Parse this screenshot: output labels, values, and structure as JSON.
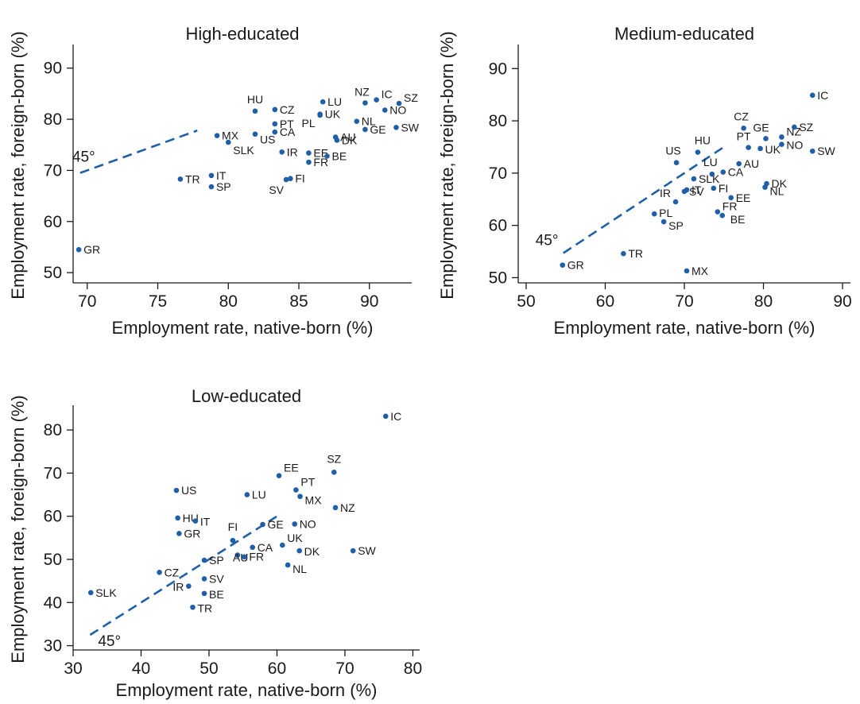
{
  "colors": {
    "point": "#1f5fa8",
    "axis": "#1a1a1a",
    "reference_line": "#1f5fa8"
  },
  "chart_data": [
    {
      "type": "scatter",
      "title": "High-educated",
      "xlabel": "Employment rate, native-born (%)",
      "ylabel": "Employment rate, foreign-born (%)",
      "xlim": [
        69,
        93
      ],
      "ylim": [
        48,
        94
      ],
      "xticks": [
        70,
        75,
        80,
        85,
        90
      ],
      "yticks": [
        50,
        60,
        70,
        80,
        90
      ],
      "reference_line": {
        "label": "45°",
        "x": [
          69.5,
          77.8
        ]
      },
      "points": [
        {
          "label": "GR",
          "x": 69.4,
          "y": 54.5
        },
        {
          "label": "TR",
          "x": 76.6,
          "y": 68.3
        },
        {
          "label": "IT",
          "x": 78.8,
          "y": 69.0
        },
        {
          "label": "SP",
          "x": 78.8,
          "y": 66.8
        },
        {
          "label": "MX",
          "x": 79.2,
          "y": 76.8
        },
        {
          "label": "SLK",
          "x": 80.0,
          "y": 75.5
        },
        {
          "label": "HU",
          "x": 81.9,
          "y": 81.6
        },
        {
          "label": "US",
          "x": 81.9,
          "y": 77.1
        },
        {
          "label": "PT",
          "x": 83.3,
          "y": 79.1
        },
        {
          "label": "CA",
          "x": 83.3,
          "y": 77.5
        },
        {
          "label": "CZ",
          "x": 83.3,
          "y": 81.9
        },
        {
          "label": "IR",
          "x": 83.8,
          "y": 73.6
        },
        {
          "label": "FI",
          "x": 84.4,
          "y": 68.4
        },
        {
          "label": "SV",
          "x": 84.1,
          "y": 68.2
        },
        {
          "label": "EE",
          "x": 85.7,
          "y": 73.4
        },
        {
          "label": "FR",
          "x": 85.7,
          "y": 71.6
        },
        {
          "label": "LU",
          "x": 86.7,
          "y": 83.4
        },
        {
          "label": "UK",
          "x": 86.5,
          "y": 81.0
        },
        {
          "label": "PL",
          "x": 86.5,
          "y": 80.8
        },
        {
          "label": "BE",
          "x": 87.0,
          "y": 72.8
        },
        {
          "label": "AU",
          "x": 87.6,
          "y": 76.5
        },
        {
          "label": "DK",
          "x": 87.7,
          "y": 75.9
        },
        {
          "label": "NL",
          "x": 89.1,
          "y": 79.6
        },
        {
          "label": "GE",
          "x": 89.7,
          "y": 78.0
        },
        {
          "label": "NZ",
          "x": 89.7,
          "y": 83.2
        },
        {
          "label": "IC",
          "x": 90.5,
          "y": 83.8
        },
        {
          "label": "NO",
          "x": 91.1,
          "y": 81.8
        },
        {
          "label": "SZ",
          "x": 92.1,
          "y": 83.1
        },
        {
          "label": "SW",
          "x": 91.9,
          "y": 78.4
        }
      ]
    },
    {
      "type": "scatter",
      "title": "Medium-educated",
      "xlabel": "Employment rate, native-born (%)",
      "ylabel": "Employment rate, foreign-born (%)",
      "xlim": [
        49,
        91
      ],
      "ylim": [
        49,
        94
      ],
      "xticks": [
        50,
        60,
        70,
        80,
        90
      ],
      "yticks": [
        50,
        60,
        70,
        80,
        90
      ],
      "reference_line": {
        "label": "45°",
        "x": [
          54.7,
          75.0
        ]
      },
      "points": [
        {
          "label": "GR",
          "x": 54.6,
          "y": 52.4
        },
        {
          "label": "TR",
          "x": 62.3,
          "y": 54.6
        },
        {
          "label": "MX",
          "x": 70.3,
          "y": 51.3
        },
        {
          "label": "PL",
          "x": 66.2,
          "y": 62.2
        },
        {
          "label": "SP",
          "x": 67.4,
          "y": 60.7
        },
        {
          "label": "IR",
          "x": 68.9,
          "y": 64.5
        },
        {
          "label": "SV",
          "x": 70.0,
          "y": 66.5
        },
        {
          "label": "IT",
          "x": 70.3,
          "y": 66.8
        },
        {
          "label": "US",
          "x": 69.0,
          "y": 72.0
        },
        {
          "label": "SLK",
          "x": 71.2,
          "y": 68.9
        },
        {
          "label": "HU",
          "x": 71.7,
          "y": 74.0
        },
        {
          "label": "LU",
          "x": 73.5,
          "y": 69.8
        },
        {
          "label": "FI",
          "x": 73.7,
          "y": 67.1
        },
        {
          "label": "CA",
          "x": 74.9,
          "y": 70.2
        },
        {
          "label": "EE",
          "x": 75.9,
          "y": 65.3
        },
        {
          "label": "FR",
          "x": 74.2,
          "y": 62.6
        },
        {
          "label": "BE",
          "x": 74.8,
          "y": 61.9
        },
        {
          "label": "AU",
          "x": 76.9,
          "y": 71.8
        },
        {
          "label": "CZ",
          "x": 77.5,
          "y": 78.6
        },
        {
          "label": "PT",
          "x": 78.1,
          "y": 74.9
        },
        {
          "label": "UK",
          "x": 79.6,
          "y": 74.7
        },
        {
          "label": "GE",
          "x": 80.3,
          "y": 76.6
        },
        {
          "label": "DK",
          "x": 80.4,
          "y": 68.0
        },
        {
          "label": "NL",
          "x": 80.2,
          "y": 67.3
        },
        {
          "label": "NZ",
          "x": 82.3,
          "y": 76.9
        },
        {
          "label": "NO",
          "x": 82.3,
          "y": 75.5
        },
        {
          "label": "SZ",
          "x": 83.9,
          "y": 78.8
        },
        {
          "label": "IC",
          "x": 86.2,
          "y": 84.9
        },
        {
          "label": "SW",
          "x": 86.2,
          "y": 74.2
        }
      ]
    },
    {
      "type": "scatter",
      "title": "Low-educated",
      "xlabel": "Employment rate, native-born (%)",
      "ylabel": "Employment rate, foreign-born (%)",
      "xlim": [
        30,
        81
      ],
      "ylim": [
        29,
        85
      ],
      "xticks": [
        30,
        40,
        50,
        60,
        70,
        80
      ],
      "yticks": [
        30,
        40,
        50,
        60,
        70,
        80
      ],
      "reference_line": {
        "label": "45°",
        "x": [
          32.5,
          60.0
        ]
      },
      "points": [
        {
          "label": "SLK",
          "x": 32.6,
          "y": 42.3
        },
        {
          "label": "CZ",
          "x": 42.7,
          "y": 47.0
        },
        {
          "label": "US",
          "x": 45.2,
          "y": 66.0
        },
        {
          "label": "HU",
          "x": 45.4,
          "y": 59.6
        },
        {
          "label": "GR",
          "x": 45.6,
          "y": 56.0
        },
        {
          "label": "IT",
          "x": 48.0,
          "y": 58.9
        },
        {
          "label": "IR",
          "x": 47.0,
          "y": 43.8
        },
        {
          "label": "TR",
          "x": 47.6,
          "y": 38.9
        },
        {
          "label": "SP",
          "x": 49.3,
          "y": 49.8
        },
        {
          "label": "SV",
          "x": 49.3,
          "y": 45.5
        },
        {
          "label": "BE",
          "x": 49.3,
          "y": 42.1
        },
        {
          "label": "FI",
          "x": 53.5,
          "y": 54.4
        },
        {
          "label": "AU",
          "x": 54.2,
          "y": 51.0
        },
        {
          "label": "FR",
          "x": 55.2,
          "y": 50.6
        },
        {
          "label": "CA",
          "x": 56.4,
          "y": 52.8
        },
        {
          "label": "LU",
          "x": 55.6,
          "y": 65.0
        },
        {
          "label": "GE",
          "x": 57.9,
          "y": 58.1
        },
        {
          "label": "EE",
          "x": 60.3,
          "y": 69.4
        },
        {
          "label": "UK",
          "x": 60.8,
          "y": 53.3
        },
        {
          "label": "NL",
          "x": 61.6,
          "y": 48.7
        },
        {
          "label": "NO",
          "x": 62.6,
          "y": 58.2
        },
        {
          "label": "PT",
          "x": 62.8,
          "y": 66.1
        },
        {
          "label": "DK",
          "x": 63.3,
          "y": 52.0
        },
        {
          "label": "MX",
          "x": 63.4,
          "y": 64.6
        },
        {
          "label": "SZ",
          "x": 68.4,
          "y": 70.2
        },
        {
          "label": "NZ",
          "x": 68.6,
          "y": 62.0
        },
        {
          "label": "SW",
          "x": 71.2,
          "y": 52.0
        },
        {
          "label": "IC",
          "x": 76.0,
          "y": 83.2
        }
      ]
    }
  ]
}
